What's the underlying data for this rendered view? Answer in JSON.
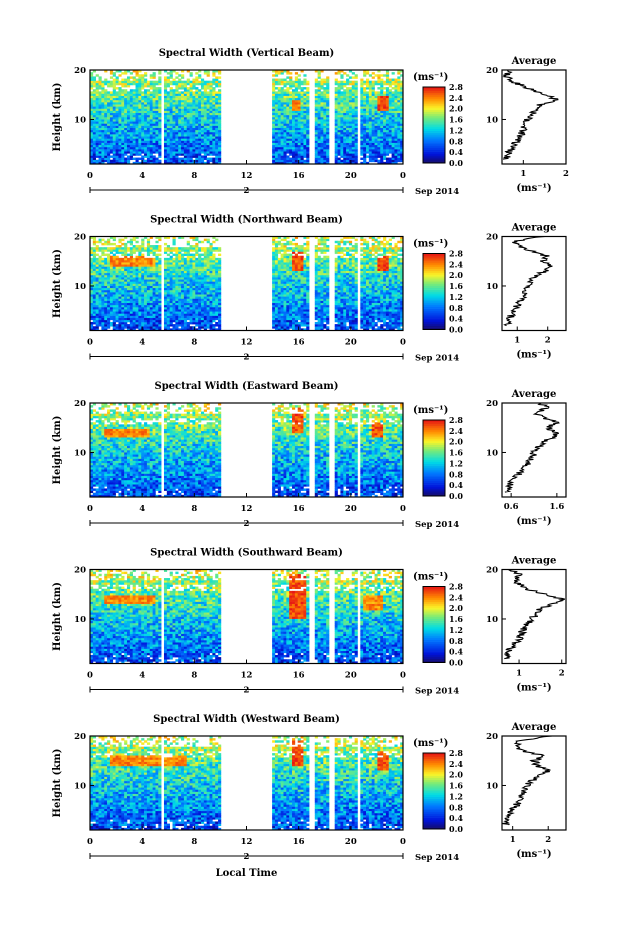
{
  "chart_data": [
    {
      "type": "heatmap",
      "title": "Spectral Width (Vertical Beam)",
      "ylabel": "Height (km)",
      "xlabel": "",
      "x_ticks": [
        "0",
        "4",
        "8",
        "12",
        "16",
        "20",
        "0"
      ],
      "y_ticks": [
        "20",
        "10"
      ],
      "ylim": [
        1,
        20
      ],
      "date_marker": "2",
      "date_label": "Sep 2014",
      "colorbar": {
        "unit": "(ms⁻¹)",
        "ticks": [
          "2.8",
          "2.4",
          "2.0",
          "1.6",
          "1.2",
          "0.8",
          "0.4",
          "0.0"
        ],
        "range": [
          0.0,
          2.8
        ]
      },
      "data_gaps_hours": [
        [
          10,
          14
        ],
        [
          16.8,
          17.3
        ],
        [
          18.3,
          18.8
        ]
      ],
      "high_value_regions": [
        {
          "time_hours": [
            15.5,
            16.2
          ],
          "height_km": [
            12,
            14
          ],
          "value": 2.6
        },
        {
          "time_hours": [
            22.0,
            23.0
          ],
          "height_km": [
            12,
            15
          ],
          "value": 2.8
        }
      ],
      "average_panel": {
        "title": "Average",
        "xlabel": "(ms⁻¹)",
        "x_ticks": [
          "1",
          "2"
        ],
        "xlim": [
          0.5,
          2
        ],
        "y_ticks": [
          "20",
          "10"
        ],
        "profile_height_km": [
          2,
          4,
          6,
          8,
          10,
          12,
          13,
          14,
          15,
          16,
          17,
          18,
          19,
          20
        ],
        "profile_value": [
          0.6,
          0.7,
          0.9,
          1.0,
          1.1,
          1.3,
          1.4,
          1.8,
          1.5,
          1.2,
          0.9,
          0.7,
          0.6,
          0.7
        ]
      }
    },
    {
      "type": "heatmap",
      "title": "Spectral Width (Northward Beam)",
      "ylabel": "Height (km)",
      "xlabel": "",
      "x_ticks": [
        "0",
        "4",
        "8",
        "12",
        "16",
        "20",
        "0"
      ],
      "y_ticks": [
        "20",
        "10"
      ],
      "ylim": [
        1,
        20
      ],
      "date_marker": "2",
      "date_label": "Sep 2014",
      "colorbar": {
        "unit": "(ms⁻¹)",
        "ticks": [
          "2.8",
          "2.4",
          "2.0",
          "1.6",
          "1.2",
          "0.8",
          "0.4",
          "0.0"
        ],
        "range": [
          0.0,
          2.8
        ]
      },
      "data_gaps_hours": [
        [
          10,
          14
        ],
        [
          16.8,
          17.3
        ],
        [
          18.3,
          18.8
        ]
      ],
      "high_value_regions": [
        {
          "time_hours": [
            1.5,
            5.0
          ],
          "height_km": [
            14,
            16
          ],
          "value": 2.6
        },
        {
          "time_hours": [
            15.5,
            16.3
          ],
          "height_km": [
            13,
            17
          ],
          "value": 2.8
        },
        {
          "time_hours": [
            22.0,
            23.0
          ],
          "height_km": [
            13,
            16
          ],
          "value": 2.8
        }
      ],
      "average_panel": {
        "title": "Average",
        "xlabel": "(ms⁻¹)",
        "x_ticks": [
          "1",
          "2"
        ],
        "xlim": [
          0.5,
          2.6
        ],
        "y_ticks": [
          "20",
          "10"
        ],
        "profile_height_km": [
          2,
          4,
          6,
          8,
          10,
          12,
          13,
          14,
          15,
          16,
          17,
          18,
          19,
          20
        ],
        "profile_value": [
          0.7,
          0.8,
          1.0,
          1.2,
          1.3,
          1.6,
          1.9,
          2.1,
          1.8,
          2.0,
          1.5,
          1.1,
          0.9,
          1.8
        ]
      }
    },
    {
      "type": "heatmap",
      "title": "Spectral Width (Eastward Beam)",
      "ylabel": "Height (km)",
      "xlabel": "",
      "x_ticks": [
        "0",
        "4",
        "8",
        "12",
        "16",
        "20",
        "0"
      ],
      "y_ticks": [
        "20",
        "10"
      ],
      "ylim": [
        1,
        20
      ],
      "date_marker": "2",
      "date_label": "Sep 2014",
      "colorbar": {
        "unit": "(ms⁻¹)",
        "ticks": [
          "2.8",
          "2.4",
          "2.0",
          "1.6",
          "1.2",
          "0.8",
          "0.4",
          "0.0"
        ],
        "range": [
          0.0,
          2.8
        ]
      },
      "data_gaps_hours": [
        [
          10,
          14
        ],
        [
          16.8,
          17.3
        ],
        [
          18.3,
          18.8
        ]
      ],
      "high_value_regions": [
        {
          "time_hours": [
            1.0,
            4.5
          ],
          "height_km": [
            13,
            15
          ],
          "value": 2.6
        },
        {
          "time_hours": [
            15.5,
            16.3
          ],
          "height_km": [
            14,
            19
          ],
          "value": 2.8
        },
        {
          "time_hours": [
            21.5,
            22.5
          ],
          "height_km": [
            13,
            16
          ],
          "value": 2.8
        }
      ],
      "average_panel": {
        "title": "Average",
        "xlabel": "(ms⁻¹)",
        "x_ticks": [
          "0.6",
          "1.6"
        ],
        "xlim": [
          0.4,
          1.8
        ],
        "y_ticks": [
          "20",
          "10"
        ],
        "profile_height_km": [
          2,
          4,
          6,
          8,
          10,
          12,
          13,
          14,
          15,
          16,
          17,
          18,
          19,
          20
        ],
        "profile_value": [
          0.5,
          0.6,
          0.8,
          1.0,
          1.1,
          1.3,
          1.5,
          1.6,
          1.4,
          1.6,
          1.3,
          1.1,
          1.4,
          1.2
        ]
      }
    },
    {
      "type": "heatmap",
      "title": "Spectral Width (Southward Beam)",
      "ylabel": "Height (km)",
      "xlabel": "",
      "x_ticks": [
        "0",
        "4",
        "8",
        "12",
        "16",
        "20",
        "0"
      ],
      "y_ticks": [
        "20",
        "10"
      ],
      "ylim": [
        1,
        20
      ],
      "date_marker": "2",
      "date_label": "Sep 2014",
      "colorbar": {
        "unit": "(ms⁻¹)",
        "ticks": [
          "2.8",
          "2.4",
          "2.0",
          "1.6",
          "1.2",
          "0.8",
          "0.4",
          "0.0"
        ],
        "range": [
          0.0,
          2.8
        ]
      },
      "data_gaps_hours": [
        [
          10,
          14
        ],
        [
          16.8,
          17.3
        ],
        [
          18.3,
          18.8
        ]
      ],
      "high_value_regions": [
        {
          "time_hours": [
            1.0,
            5.0
          ],
          "height_km": [
            13,
            15
          ],
          "value": 2.6
        },
        {
          "time_hours": [
            15.3,
            16.5
          ],
          "height_km": [
            10,
            19
          ],
          "value": 2.8
        },
        {
          "time_hours": [
            21.0,
            22.5
          ],
          "height_km": [
            12,
            15
          ],
          "value": 2.6
        }
      ],
      "average_panel": {
        "title": "Average",
        "xlabel": "(ms⁻¹)",
        "x_ticks": [
          "1",
          "2"
        ],
        "xlim": [
          0.6,
          2.1
        ],
        "y_ticks": [
          "20",
          "10"
        ],
        "profile_height_km": [
          2,
          4,
          6,
          8,
          10,
          12,
          13,
          14,
          15,
          16,
          17,
          18,
          19,
          20
        ],
        "profile_value": [
          0.7,
          0.8,
          1.0,
          1.1,
          1.3,
          1.5,
          1.8,
          2.0,
          1.6,
          1.2,
          1.0,
          0.9,
          1.0,
          0.8
        ]
      }
    },
    {
      "type": "heatmap",
      "title": "Spectral Width (Westward Beam)",
      "ylabel": "Height (km)",
      "xlabel": "Local Time",
      "x_ticks": [
        "0",
        "4",
        "8",
        "12",
        "16",
        "20",
        "0"
      ],
      "y_ticks": [
        "20",
        "10"
      ],
      "ylim": [
        1,
        20
      ],
      "date_marker": "2",
      "date_label": "Sep 2014",
      "colorbar": {
        "unit": "(ms⁻¹)",
        "ticks": [
          "2.8",
          "2.4",
          "2.0",
          "1.6",
          "1.2",
          "0.8",
          "0.4",
          "0.0"
        ],
        "range": [
          0.0,
          2.8
        ]
      },
      "data_gaps_hours": [
        [
          10,
          14
        ],
        [
          16.8,
          17.3
        ],
        [
          18.3,
          18.8
        ]
      ],
      "high_value_regions": [
        {
          "time_hours": [
            1.5,
            7.5
          ],
          "height_km": [
            14,
            16
          ],
          "value": 2.6
        },
        {
          "time_hours": [
            15.5,
            16.3
          ],
          "height_km": [
            14,
            19
          ],
          "value": 2.8
        },
        {
          "time_hours": [
            22.0,
            23.0
          ],
          "height_km": [
            13,
            17
          ],
          "value": 2.8
        }
      ],
      "average_panel": {
        "title": "Average",
        "xlabel": "(ms⁻¹)",
        "x_ticks": [
          "1",
          "2"
        ],
        "xlim": [
          0.7,
          2.5
        ],
        "y_ticks": [
          "20",
          "10"
        ],
        "profile_height_km": [
          2,
          4,
          6,
          8,
          10,
          12,
          13,
          14,
          15,
          16,
          17,
          18,
          19,
          20
        ],
        "profile_value": [
          0.8,
          0.9,
          1.1,
          1.3,
          1.4,
          1.7,
          2.0,
          1.7,
          1.6,
          1.9,
          1.3,
          1.1,
          1.2,
          2.1
        ]
      }
    }
  ]
}
